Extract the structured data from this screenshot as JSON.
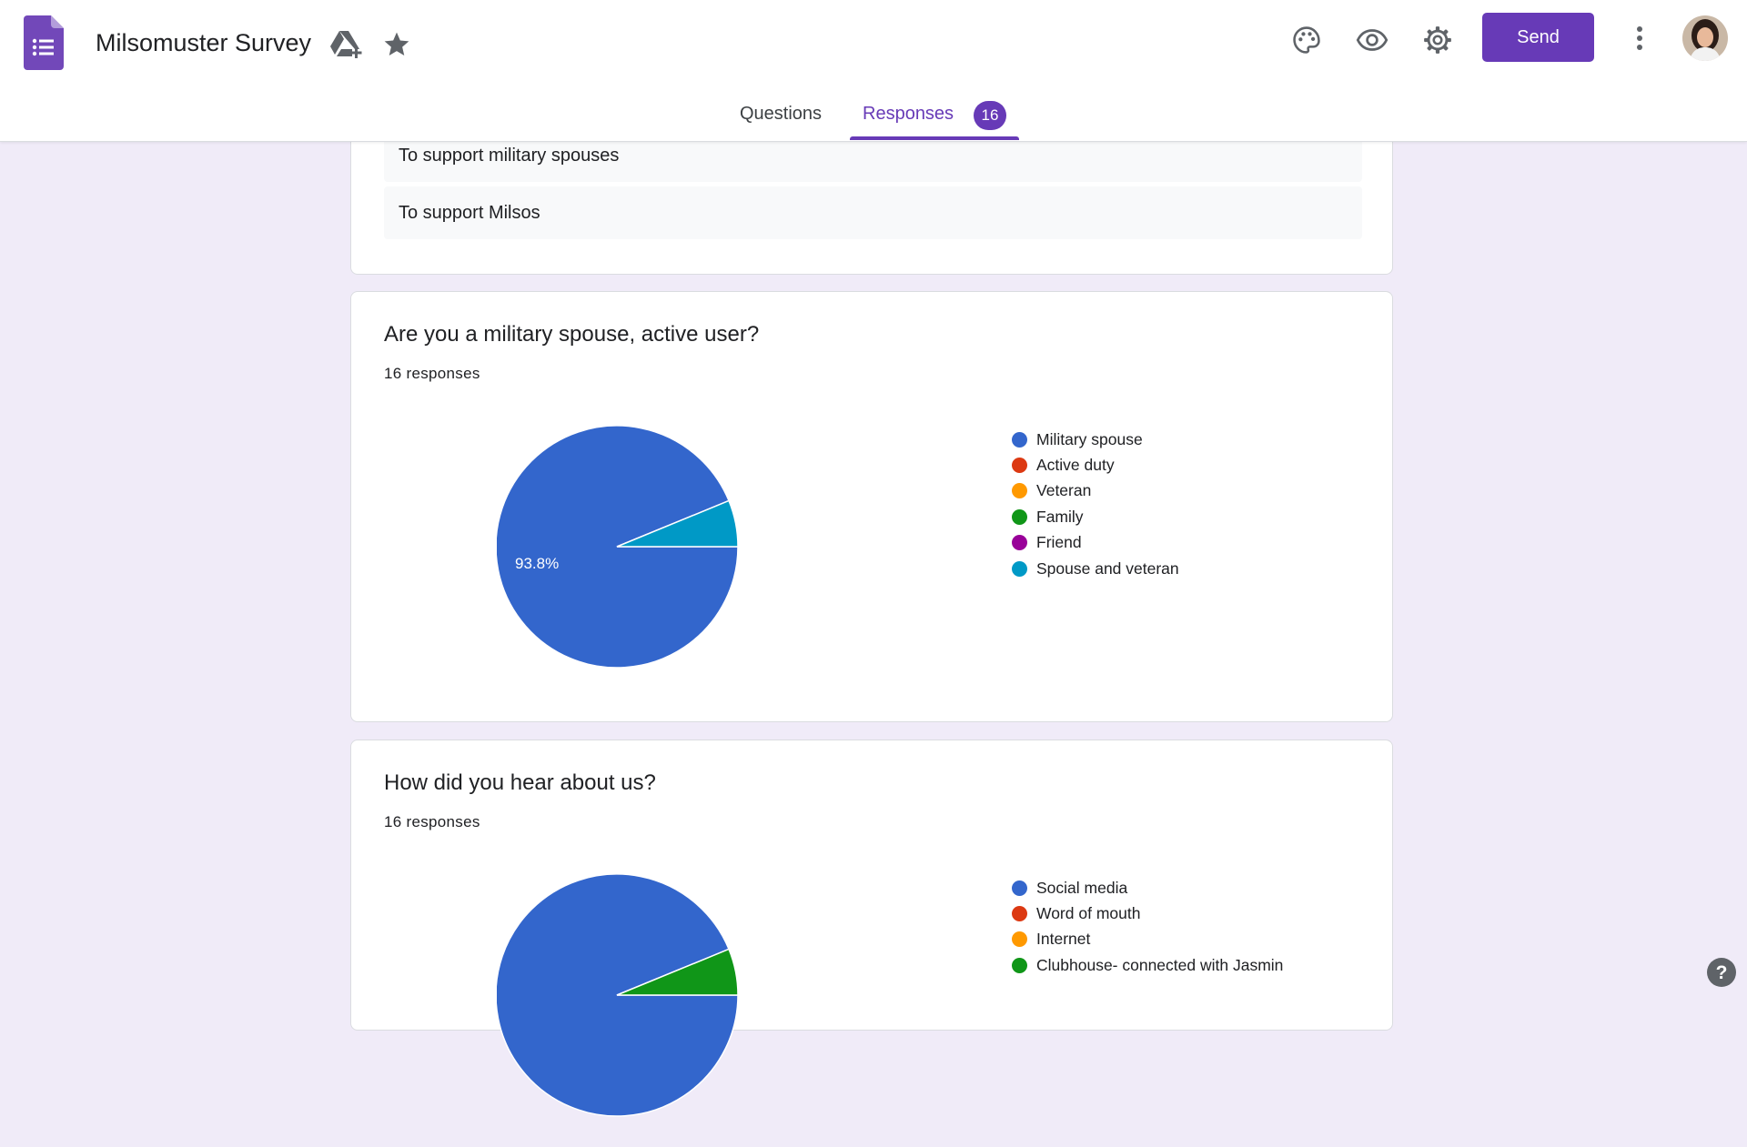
{
  "header": {
    "title": "Milsomuster Survey",
    "send_label": "Send",
    "colors": {
      "accent": "#673ab7"
    }
  },
  "tabs": [
    {
      "label": "Questions",
      "active": false
    },
    {
      "label": "Responses",
      "active": true,
      "badge": "16"
    }
  ],
  "top_card": {
    "answers": [
      "To support military spouses",
      "To support Milsos"
    ]
  },
  "questions": [
    {
      "title": "Are you a military spouse, active user?",
      "count_text": "16 responses",
      "legend": [
        {
          "label": "Military spouse",
          "color": "#3366cc"
        },
        {
          "label": "Active duty",
          "color": "#dc3912"
        },
        {
          "label": "Veteran",
          "color": "#ff9900"
        },
        {
          "label": "Family",
          "color": "#109618"
        },
        {
          "label": "Friend",
          "color": "#990099"
        },
        {
          "label": "Spouse and veteran",
          "color": "#0099c6"
        }
      ]
    },
    {
      "title": "How did you hear about us?",
      "count_text": "16 responses",
      "legend": [
        {
          "label": "Social media",
          "color": "#3366cc"
        },
        {
          "label": "Word of mouth",
          "color": "#dc3912"
        },
        {
          "label": "Internet",
          "color": "#ff9900"
        },
        {
          "label": "Clubhouse- connected with Jasmin",
          "color": "#109618"
        }
      ]
    }
  ],
  "chart_data": [
    {
      "type": "pie",
      "categories": [
        "Military spouse",
        "Active duty",
        "Veteran",
        "Family",
        "Friend",
        "Spouse and veteran"
      ],
      "values": [
        93.8,
        0,
        0,
        0,
        0,
        6.2
      ],
      "data_labels": [
        "93.8%"
      ],
      "colors": [
        "#3366cc",
        "#dc3912",
        "#ff9900",
        "#109618",
        "#990099",
        "#0099c6"
      ],
      "legend_position": "right"
    },
    {
      "type": "pie",
      "categories": [
        "Social media",
        "Word of mouth",
        "Internet",
        "Clubhouse- connected with Jasmin"
      ],
      "values": [
        93.8,
        0,
        0,
        6.2
      ],
      "colors": [
        "#3366cc",
        "#dc3912",
        "#ff9900",
        "#109618"
      ],
      "legend_position": "right"
    }
  ],
  "icons": [
    "forms-logo-icon",
    "drive-add-icon",
    "star-icon",
    "palette-icon",
    "eye-icon",
    "gear-icon",
    "more-vert-icon",
    "help-icon"
  ]
}
